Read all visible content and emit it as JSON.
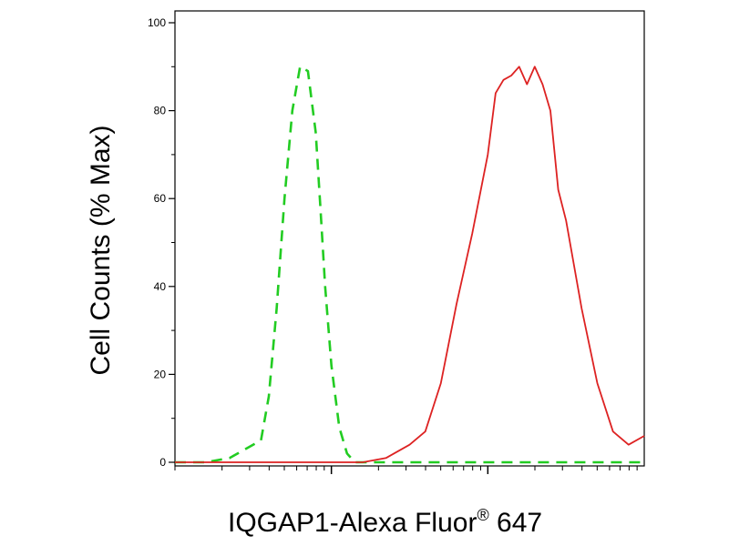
{
  "chart_data": {
    "type": "line",
    "ylabel": "Cell Counts (% Max)",
    "xlabel_main": "IQGAP1-Alexa Fluor",
    "xlabel_sup": "®",
    "xlabel_tail": " 647",
    "ylim": [
      0,
      100
    ],
    "xscale": "log",
    "xlim_decades": [
      0,
      3.0
    ],
    "yticks": [
      "0",
      "20",
      "40",
      "60",
      "80",
      "100"
    ],
    "ytick_values": [
      0,
      20,
      40,
      60,
      80,
      100
    ],
    "grid": false,
    "series": [
      {
        "style": "dashed",
        "color": "#22cc22",
        "x": [
          0.0,
          0.2,
          0.35,
          0.45,
          0.55,
          0.6,
          0.65,
          0.7,
          0.75,
          0.8,
          0.85,
          0.9,
          0.93,
          0.96,
          1.0,
          1.05,
          1.1,
          1.15,
          1.2,
          1.3,
          1.4,
          1.6,
          2.0,
          3.0
        ],
        "y": [
          0,
          0,
          1,
          3,
          5,
          15,
          35,
          60,
          80,
          90,
          89,
          75,
          58,
          40,
          22,
          8,
          2,
          0,
          0,
          0,
          0,
          0,
          0,
          0
        ]
      },
      {
        "style": "solid",
        "color": "#dd2222",
        "x": [
          0.0,
          0.5,
          1.0,
          1.2,
          1.35,
          1.5,
          1.6,
          1.7,
          1.8,
          1.9,
          2.0,
          2.05,
          2.1,
          2.15,
          2.2,
          2.25,
          2.3,
          2.35,
          2.4,
          2.45,
          2.5,
          2.6,
          2.7,
          2.8,
          2.9,
          3.0
        ],
        "y": [
          0,
          0,
          0,
          0,
          1,
          4,
          7,
          18,
          36,
          52,
          70,
          84,
          87,
          88,
          90,
          86,
          90,
          86,
          80,
          62,
          55,
          35,
          18,
          7,
          4,
          6
        ]
      }
    ]
  }
}
